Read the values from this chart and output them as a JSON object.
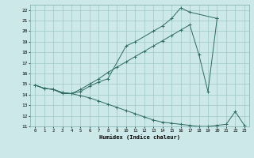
{
  "xlabel": "Humidex (Indice chaleur)",
  "background_color": "#cde8e8",
  "grid_color": "#9fc8c8",
  "line_color": "#2e6b60",
  "line1_x": [
    0,
    1,
    2,
    3,
    4,
    5,
    6,
    7,
    8,
    10,
    11,
    13,
    14,
    15,
    16,
    17,
    20
  ],
  "line1_y": [
    14.9,
    14.6,
    14.5,
    14.2,
    14.1,
    14.3,
    14.8,
    15.2,
    15.5,
    18.6,
    19.0,
    20.0,
    20.5,
    21.2,
    22.2,
    21.8,
    21.2
  ],
  "line2_x": [
    0,
    1,
    2,
    3,
    4,
    5,
    6,
    7,
    8,
    9,
    10,
    11,
    12,
    13,
    14,
    15,
    16,
    17,
    18,
    19,
    20
  ],
  "line2_y": [
    14.9,
    14.6,
    14.5,
    14.2,
    14.1,
    14.5,
    15.0,
    15.5,
    16.1,
    16.6,
    17.1,
    17.6,
    18.1,
    18.6,
    19.1,
    19.6,
    20.1,
    20.6,
    17.8,
    14.3,
    21.2
  ],
  "line3_x": [
    0,
    1,
    2,
    3,
    4,
    5,
    6,
    7,
    8,
    9,
    10,
    11,
    12,
    13,
    14,
    15,
    16,
    17,
    18,
    19,
    20,
    21,
    22,
    23
  ],
  "line3_y": [
    14.9,
    14.6,
    14.5,
    14.1,
    14.1,
    13.9,
    13.7,
    13.4,
    13.1,
    12.8,
    12.5,
    12.2,
    11.9,
    11.6,
    11.4,
    11.3,
    11.2,
    11.1,
    11.0,
    11.0,
    11.1,
    11.2,
    12.4,
    11.1
  ],
  "ylim": [
    11,
    22.5
  ],
  "xlim": [
    -0.5,
    23.5
  ],
  "yticks": [
    11,
    12,
    13,
    14,
    15,
    16,
    17,
    18,
    19,
    20,
    21,
    22
  ],
  "xticks": [
    0,
    1,
    2,
    3,
    4,
    5,
    6,
    7,
    8,
    9,
    10,
    11,
    12,
    13,
    14,
    15,
    16,
    17,
    18,
    19,
    20,
    21,
    22,
    23
  ]
}
